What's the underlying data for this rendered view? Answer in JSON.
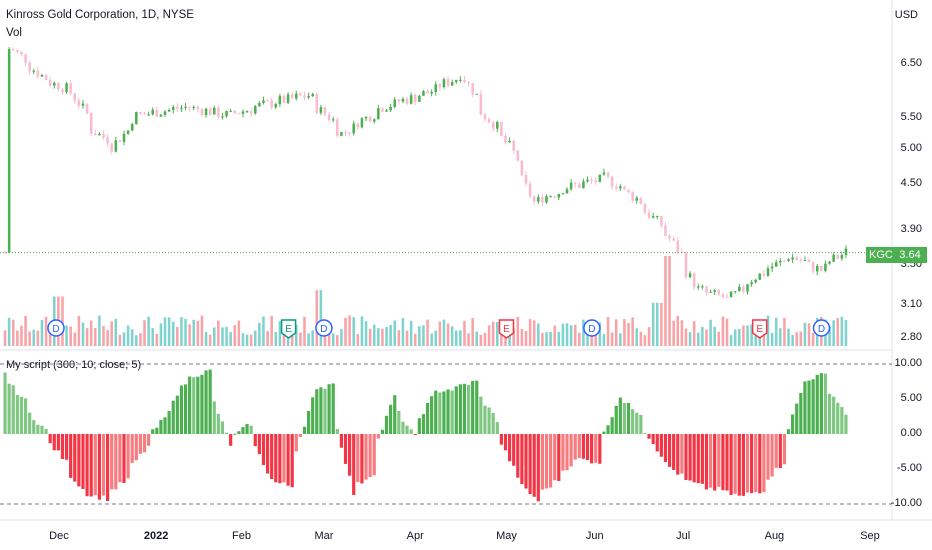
{
  "header": {
    "title": "Kinross Gold Corporation, 1D, NYSE",
    "volume_label": "Vol",
    "indicator_label": "My script (300; 10; close; 5)",
    "currency": "USD"
  },
  "ticker": {
    "symbol": "KGC",
    "last_price": "3.64"
  },
  "price_axis": [
    "6.50",
    "5.50",
    "5.00",
    "4.50",
    "3.90",
    "3.50",
    "3.10",
    "2.80"
  ],
  "indicator_axis": [
    "10.00",
    "5.00",
    "0.00",
    "-5.00",
    "-10.00"
  ],
  "time_axis": [
    {
      "label": "Dec",
      "bold": false
    },
    {
      "label": "2022",
      "bold": true
    },
    {
      "label": "Feb",
      "bold": false
    },
    {
      "label": "Mar",
      "bold": false
    },
    {
      "label": "Apr",
      "bold": false
    },
    {
      "label": "May",
      "bold": false
    },
    {
      "label": "Jun",
      "bold": false
    },
    {
      "label": "Jul",
      "bold": false
    },
    {
      "label": "Aug",
      "bold": false
    },
    {
      "label": "Sep",
      "bold": false
    }
  ],
  "event_markers": [
    {
      "letter": "D",
      "type": "dividend"
    },
    {
      "letter": "E",
      "type": "earnings"
    },
    {
      "letter": "D",
      "type": "dividend"
    },
    {
      "letter": "E",
      "type": "earnings"
    },
    {
      "letter": "D",
      "type": "dividend"
    },
    {
      "letter": "E",
      "type": "earnings"
    },
    {
      "letter": "D",
      "type": "dividend"
    }
  ],
  "colors": {
    "up": "#4caf50",
    "down": "#f8bbd0",
    "hist_pos": "#4caf50",
    "hist_pos_light": "#81c784",
    "hist_neg": "#f23645",
    "hist_neg_light": "#f77c80",
    "vol_up": "#7fd3cf",
    "vol_down": "#f7a3a8",
    "earnings_green": "#089981",
    "earnings_red": "#f23645",
    "dividend": "#2962ff"
  },
  "chart_data": [
    {
      "type": "candlestick",
      "title": "Kinross Gold Corporation, 1D, NYSE",
      "ylabel": "USD",
      "ylim": [
        2.8,
        7.0
      ],
      "y_scale": "log",
      "x_range": [
        "2021-11-12",
        "2022-08-26"
      ],
      "close_path": [
        {
          "date": "2021-11-15",
          "close": 6.82
        },
        {
          "date": "2021-11-26",
          "close": 6.22
        },
        {
          "date": "2021-12-06",
          "close": 5.95
        },
        {
          "date": "2021-12-13",
          "close": 5.3
        },
        {
          "date": "2021-12-20",
          "close": 5.05
        },
        {
          "date": "2021-12-28",
          "close": 5.55
        },
        {
          "date": "2022-01-14",
          "close": 5.7
        },
        {
          "date": "2022-01-28",
          "close": 5.55
        },
        {
          "date": "2022-02-10",
          "close": 5.75
        },
        {
          "date": "2022-02-24",
          "close": 5.9
        },
        {
          "date": "2022-03-08",
          "close": 5.25
        },
        {
          "date": "2022-03-22",
          "close": 5.7
        },
        {
          "date": "2022-04-06",
          "close": 5.95
        },
        {
          "date": "2022-04-18",
          "close": 6.3
        },
        {
          "date": "2022-04-25",
          "close": 5.6
        },
        {
          "date": "2022-05-04",
          "close": 5.05
        },
        {
          "date": "2022-05-12",
          "close": 4.25
        },
        {
          "date": "2022-05-24",
          "close": 4.45
        },
        {
          "date": "2022-06-06",
          "close": 4.58
        },
        {
          "date": "2022-06-16",
          "close": 4.3
        },
        {
          "date": "2022-06-28",
          "close": 3.8
        },
        {
          "date": "2022-07-07",
          "close": 3.25
        },
        {
          "date": "2022-07-18",
          "close": 3.15
        },
        {
          "date": "2022-07-27",
          "close": 3.38
        },
        {
          "date": "2022-08-08",
          "close": 3.6
        },
        {
          "date": "2022-08-18",
          "close": 3.45
        },
        {
          "date": "2022-08-26",
          "close": 3.64
        }
      ],
      "last_price": 3.64
    },
    {
      "type": "bar",
      "title": "Vol",
      "note": "volume histogram, values relative to pane height",
      "spikes": [
        {
          "date": "2022-06-27",
          "relative": 1.0
        },
        {
          "date": "2022-06-23",
          "relative": 0.48
        },
        {
          "date": "2021-12-01",
          "relative": 0.55
        },
        {
          "date": "2022-02-28",
          "relative": 0.62
        }
      ]
    },
    {
      "type": "bar",
      "title": "My script (300; 10; close; 5)",
      "ylim": [
        -10,
        10
      ],
      "dashed_levels": [
        10,
        -10
      ],
      "x": [
        "2021-11-12",
        "2021-11-26",
        "2021-12-10",
        "2021-12-17",
        "2021-12-24",
        "2022-01-07",
        "2022-01-14",
        "2022-01-21",
        "2022-01-28",
        "2022-02-04",
        "2022-02-11",
        "2022-02-18",
        "2022-02-25",
        "2022-03-04",
        "2022-03-11",
        "2022-03-18",
        "2022-03-25",
        "2022-04-01",
        "2022-04-08",
        "2022-04-15",
        "2022-04-22",
        "2022-04-29",
        "2022-05-06",
        "2022-05-13",
        "2022-05-20",
        "2022-05-27",
        "2022-06-03",
        "2022-06-10",
        "2022-06-17",
        "2022-06-24",
        "2022-07-01",
        "2022-07-08",
        "2022-07-15",
        "2022-07-22",
        "2022-07-29",
        "2022-08-05",
        "2022-08-12",
        "2022-08-19",
        "2022-08-26"
      ],
      "values": [
        9.0,
        0.5,
        -8.5,
        -9.2,
        -6.5,
        3.0,
        8.0,
        9.0,
        -1.5,
        1.5,
        -6.5,
        -7.5,
        5.0,
        7.5,
        -8.5,
        -5.5,
        5.5,
        -0.5,
        6.0,
        6.5,
        7.5,
        2.0,
        -6.0,
        -9.5,
        -6.5,
        -3.5,
        -4.0,
        5.5,
        3.0,
        -3.0,
        -6.0,
        -7.5,
        -8.0,
        -9.0,
        -8.0,
        -4.0,
        7.5,
        8.5,
        3.0
      ]
    }
  ]
}
